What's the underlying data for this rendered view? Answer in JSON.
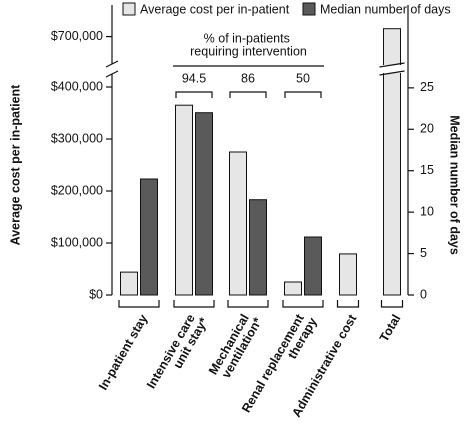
{
  "chart_data": {
    "type": "bar",
    "legend": "top",
    "categories": [
      "In-patient stay",
      "Intensive care unit stay*",
      "Mechanical ventilation*",
      "Renal replacement therapy",
      "Administrative cost",
      "Total"
    ],
    "series": [
      {
        "name": "Average cost per in-patient",
        "color": "#e6e6e6",
        "values": [
          44000,
          365000,
          275000,
          25000,
          79000,
          715000
        ]
      },
      {
        "name": "Median number of days",
        "color": "#5a5a5a",
        "axis": "y2",
        "values": [
          14,
          22,
          11.5,
          7,
          null,
          null
        ]
      }
    ],
    "ylabel": "Average cost per in-patient",
    "y2label": "Median number of days",
    "ylim": [
      0,
      760000
    ],
    "axis_break": [
      425000,
      648000
    ],
    "yticks": [
      {
        "value": 0,
        "label": "$0"
      },
      {
        "value": 100000,
        "label": "$100,000"
      },
      {
        "value": 200000,
        "label": "$200,000"
      },
      {
        "value": 300000,
        "label": "$300,000"
      },
      {
        "value": 400000,
        "label": "$400,000"
      },
      {
        "value": 700000,
        "label": "$700,000"
      }
    ],
    "y2lim": [
      0,
      35
    ],
    "y2ticks": [
      0,
      5,
      10,
      15,
      20,
      25
    ],
    "annotation": {
      "title": "% of in-patients requiring intervention",
      "values": [
        null,
        94.5,
        86,
        50,
        null,
        null
      ]
    }
  }
}
